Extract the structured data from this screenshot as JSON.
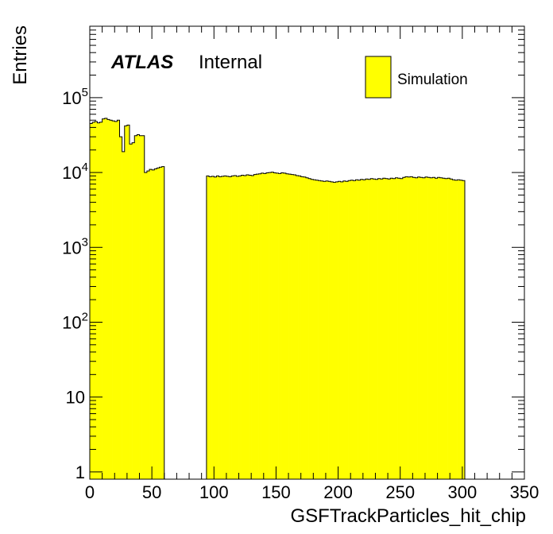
{
  "chart_data": {
    "type": "bar",
    "histogram_style": "filled-step",
    "xlabel": "GSFTrackParticles_hit_chip",
    "ylabel": "Entries",
    "xlim": [
      0,
      350
    ],
    "ylim": [
      0.8,
      900000
    ],
    "log_y": true,
    "bin_width": 2,
    "x_ticks": [
      0,
      50,
      100,
      150,
      200,
      250,
      300,
      350
    ],
    "x_tick_labels": [
      "0",
      "50",
      "100",
      "150",
      "200",
      "250",
      "300",
      "350"
    ],
    "y_ticks": [
      {
        "value": 1,
        "base": "1",
        "exp": ""
      },
      {
        "value": 10,
        "base": "10",
        "exp": ""
      },
      {
        "value": 100,
        "base": "10",
        "exp": "2"
      },
      {
        "value": 1000,
        "base": "10",
        "exp": "3"
      },
      {
        "value": 10000,
        "base": "10",
        "exp": "4"
      },
      {
        "value": 100000,
        "base": "10",
        "exp": "5"
      }
    ],
    "series": [
      {
        "name": "Simulation",
        "color": "#ffff00",
        "edge_color": "#000000",
        "bin_edges_start": 0,
        "values": [
          45000,
          47000,
          48000,
          46000,
          47000,
          52000,
          53000,
          51000,
          50000,
          49000,
          48000,
          50000,
          30000,
          19000,
          42000,
          43000,
          24000,
          25000,
          31000,
          32000,
          31000,
          31000,
          10000,
          10500,
          11000,
          10800,
          11200,
          11500,
          11800,
          12000,
          0,
          0,
          0,
          0,
          0,
          0,
          0,
          0,
          0,
          0,
          0,
          0,
          0,
          0,
          0,
          0,
          0,
          9000,
          8800,
          8900,
          8700,
          9000,
          8800,
          8900,
          9000,
          8900,
          8800,
          9000,
          9100,
          8900,
          9000,
          9200,
          9100,
          9300,
          9200,
          9100,
          9400,
          9500,
          9600,
          9800,
          9700,
          9900,
          10000,
          10100,
          9900,
          9800,
          9700,
          9900,
          9800,
          9600,
          9500,
          9400,
          9300,
          9100,
          9000,
          8800,
          8700,
          8500,
          8300,
          8100,
          8000,
          7900,
          7800,
          7700,
          7600,
          7700,
          7600,
          7500,
          7400,
          7500,
          7600,
          7500,
          7700,
          7600,
          7800,
          7900,
          7800,
          8000,
          7900,
          8100,
          8000,
          8200,
          8100,
          8300,
          8200,
          8100,
          8300,
          8200,
          8400,
          8300,
          8200,
          8400,
          8300,
          8500,
          8400,
          8300,
          8600,
          8800,
          8700,
          8800,
          8600,
          8500,
          8700,
          8600,
          8500,
          8700,
          8600,
          8500,
          8600,
          8400,
          8600,
          8500,
          8400,
          8300,
          8400,
          8200,
          8000,
          7900,
          8000,
          7900,
          7800
        ]
      }
    ],
    "annotations": {
      "atlas_label": "ATLAS",
      "atlas_status": "Internal"
    },
    "legend": {
      "placement": "top-right",
      "entries": [
        "Simulation"
      ]
    }
  }
}
